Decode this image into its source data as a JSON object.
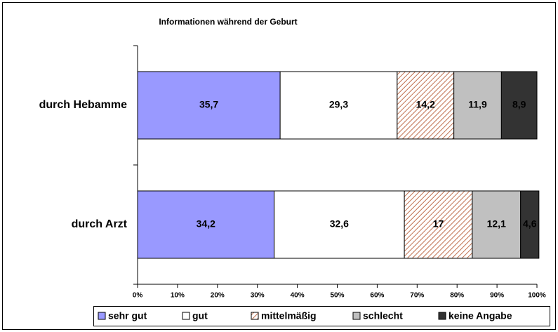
{
  "chart_data": {
    "type": "stacked-bar-horizontal",
    "title": "Informationen während der Geburt",
    "categories": [
      "durch Hebamme",
      "durch Arzt"
    ],
    "series": [
      {
        "name": "sehr gut",
        "color": "#9999ff",
        "values": [
          35.7,
          34.2
        ],
        "value_labels": [
          "35,7",
          "34,2"
        ]
      },
      {
        "name": "gut",
        "color": "#ffffff",
        "values": [
          29.3,
          32.6
        ],
        "value_labels": [
          "29,3",
          "32,6"
        ]
      },
      {
        "name": "mittelmäßig",
        "color": "#c0704f",
        "pattern": "hatch",
        "values": [
          14.2,
          17
        ],
        "value_labels": [
          "14,2",
          "17"
        ]
      },
      {
        "name": "schlecht",
        "color": "#c0c0c0",
        "values": [
          11.9,
          12.1
        ],
        "value_labels": [
          "11,9",
          "12,1"
        ]
      },
      {
        "name": "keine Angabe",
        "color": "#333333",
        "values": [
          8.9,
          4.6
        ],
        "value_labels": [
          "8,9",
          "4,6"
        ]
      }
    ],
    "xlim": [
      0,
      100
    ],
    "xticks": [
      {
        "value": 0,
        "label": "0%"
      },
      {
        "value": 10,
        "label": "10%"
      },
      {
        "value": 20,
        "label": "20%"
      },
      {
        "value": 30,
        "label": "30%"
      },
      {
        "value": 40,
        "label": "40%"
      },
      {
        "value": 50,
        "label": "50%"
      },
      {
        "value": 60,
        "label": "60%"
      },
      {
        "value": 70,
        "label": "70%"
      },
      {
        "value": 80,
        "label": "80%"
      },
      {
        "value": 90,
        "label": "90%"
      },
      {
        "value": 100,
        "label": "100%"
      }
    ],
    "legend": "bottom"
  }
}
